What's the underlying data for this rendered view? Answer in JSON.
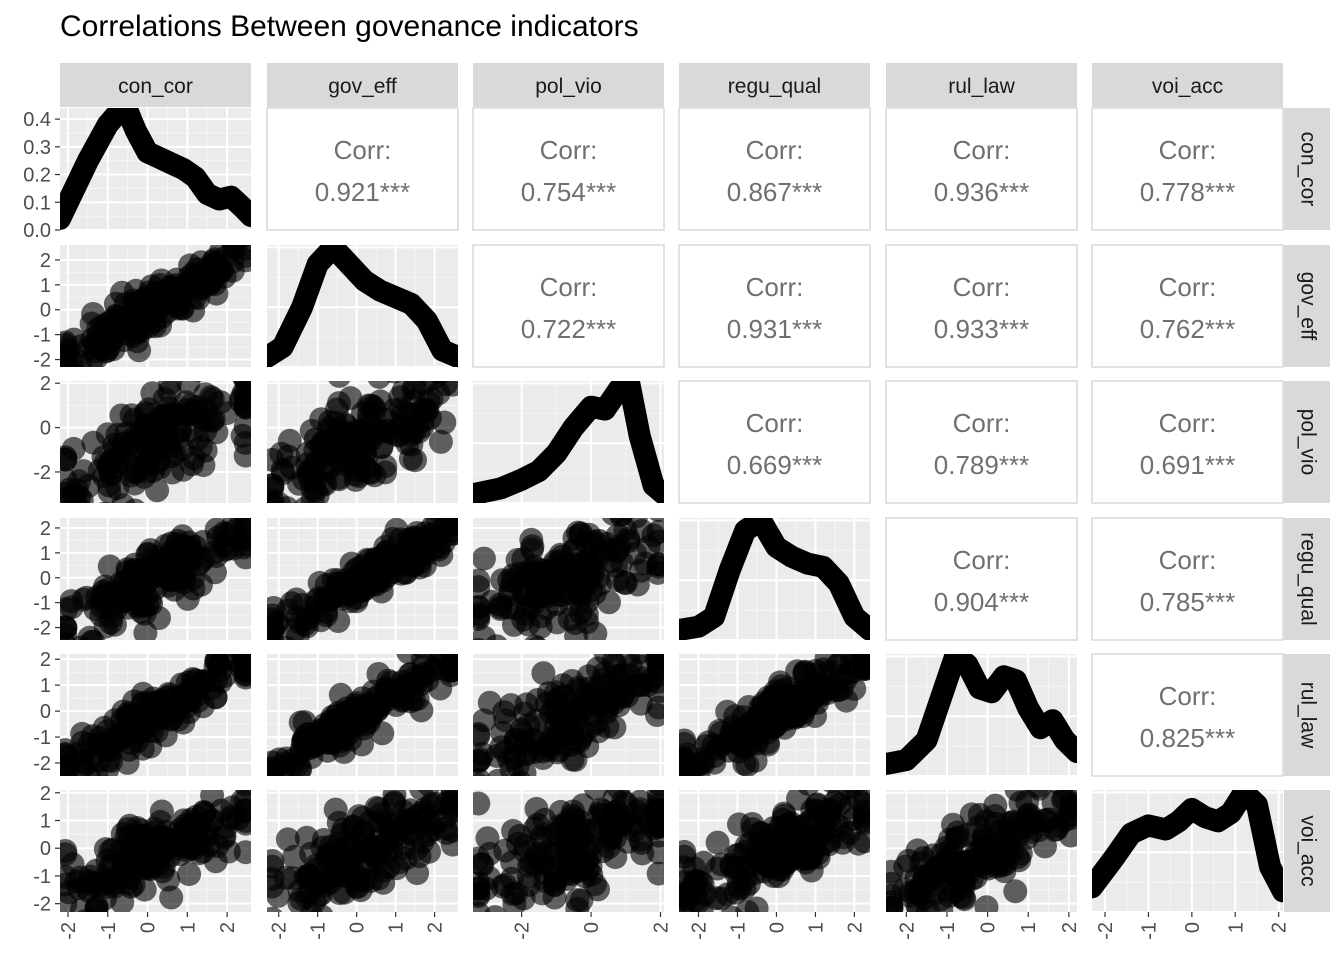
{
  "title": "Correlations Between govenance indicators",
  "chart_data": {
    "type": "scatter",
    "subtype": "pairs-matrix",
    "title": "Correlations Between govenance indicators",
    "variables": [
      "con_cor",
      "gov_eff",
      "pol_vio",
      "regu_qual",
      "rul_law",
      "voi_acc"
    ],
    "axis_ranges": {
      "con_cor": [
        -2.2,
        2.6
      ],
      "gov_eff": [
        -2.3,
        2.6
      ],
      "pol_vio": [
        -3.4,
        2.1
      ],
      "regu_qual": [
        -2.5,
        2.4
      ],
      "rul_law": [
        -2.5,
        2.2
      ],
      "voi_acc": [
        -2.3,
        2.1
      ]
    },
    "x_ticks": {
      "con_cor": [
        "-2",
        "-1",
        "0",
        "1",
        "2"
      ],
      "gov_eff": [
        "-2",
        "-1",
        "0",
        "1",
        "2"
      ],
      "pol_vio": [
        "-2",
        "0",
        "2"
      ],
      "regu_qual": [
        "-2",
        "-1",
        "0",
        "1",
        "2"
      ],
      "rul_law": [
        "-2",
        "-1",
        "0",
        "1",
        "2"
      ],
      "voi_acc": [
        "-2",
        "-1",
        "0",
        "1",
        "2"
      ]
    },
    "y_ticks": {
      "con_cor_density": [
        "0.0",
        "0.1",
        "0.2",
        "0.3",
        "0.4"
      ],
      "gov_eff": [
        "-2",
        "-1",
        "0",
        "1",
        "2"
      ],
      "pol_vio": [
        "-2",
        "0",
        "2"
      ],
      "regu_qual": [
        "-2",
        "-1",
        "0",
        "1",
        "2"
      ],
      "rul_law": [
        "-2",
        "-1",
        "0",
        "1",
        "2"
      ],
      "voi_acc": [
        "-2",
        "-1",
        "0",
        "1",
        "2"
      ]
    },
    "density_ylim_con_cor": [
      0,
      0.44
    ],
    "corr_label": "Corr:",
    "correlations": [
      {
        "row": "con_cor",
        "col": "gov_eff",
        "value": "0.921***"
      },
      {
        "row": "con_cor",
        "col": "pol_vio",
        "value": "0.754***"
      },
      {
        "row": "con_cor",
        "col": "regu_qual",
        "value": "0.867***"
      },
      {
        "row": "con_cor",
        "col": "rul_law",
        "value": "0.936***"
      },
      {
        "row": "con_cor",
        "col": "voi_acc",
        "value": "0.778***"
      },
      {
        "row": "gov_eff",
        "col": "pol_vio",
        "value": "0.722***"
      },
      {
        "row": "gov_eff",
        "col": "regu_qual",
        "value": "0.931***"
      },
      {
        "row": "gov_eff",
        "col": "rul_law",
        "value": "0.933***"
      },
      {
        "row": "gov_eff",
        "col": "voi_acc",
        "value": "0.762***"
      },
      {
        "row": "pol_vio",
        "col": "regu_qual",
        "value": "0.669***"
      },
      {
        "row": "pol_vio",
        "col": "rul_law",
        "value": "0.789***"
      },
      {
        "row": "pol_vio",
        "col": "voi_acc",
        "value": "0.691***"
      },
      {
        "row": "regu_qual",
        "col": "rul_law",
        "value": "0.904***"
      },
      {
        "row": "regu_qual",
        "col": "voi_acc",
        "value": "0.785***"
      },
      {
        "row": "rul_law",
        "col": "voi_acc",
        "value": "0.825***"
      }
    ],
    "densities": {
      "con_cor": {
        "x": [
          -2.2,
          -1.5,
          -1.0,
          -0.7,
          -0.5,
          -0.3,
          0.0,
          0.3,
          0.6,
          0.9,
          1.2,
          1.5,
          1.8,
          2.1,
          2.4,
          2.6
        ],
        "y": [
          0.04,
          0.25,
          0.38,
          0.43,
          0.43,
          0.36,
          0.28,
          0.26,
          0.24,
          0.22,
          0.19,
          0.13,
          0.11,
          0.12,
          0.08,
          0.05
        ]
      },
      "gov_eff": {
        "x": [
          -2.3,
          -1.9,
          -1.4,
          -1.0,
          -0.6,
          -0.2,
          0.2,
          0.6,
          1.0,
          1.4,
          1.8,
          2.2,
          2.6
        ],
        "y": [
          0.06,
          0.12,
          0.36,
          0.62,
          0.72,
          0.62,
          0.52,
          0.46,
          0.42,
          0.38,
          0.28,
          0.1,
          0.06
        ]
      },
      "pol_vio": {
        "x": [
          -3.4,
          -2.6,
          -2.0,
          -1.5,
          -1.0,
          -0.5,
          0.0,
          0.4,
          0.8,
          1.1,
          1.4,
          1.8,
          2.1
        ],
        "y": [
          0.06,
          0.1,
          0.16,
          0.22,
          0.34,
          0.52,
          0.66,
          0.64,
          0.78,
          0.82,
          0.46,
          0.12,
          0.06
        ]
      },
      "regu_qual": {
        "x": [
          -2.5,
          -2.0,
          -1.6,
          -1.2,
          -0.8,
          -0.4,
          0.0,
          0.4,
          0.8,
          1.2,
          1.6,
          2.0,
          2.4
        ],
        "y": [
          0.06,
          0.08,
          0.14,
          0.42,
          0.66,
          0.72,
          0.56,
          0.5,
          0.46,
          0.44,
          0.34,
          0.14,
          0.06
        ]
      },
      "rul_law": {
        "x": [
          -2.5,
          -2.0,
          -1.5,
          -1.1,
          -0.8,
          -0.5,
          -0.2,
          0.1,
          0.4,
          0.7,
          1.0,
          1.3,
          1.6,
          1.9,
          2.2
        ],
        "y": [
          0.06,
          0.08,
          0.18,
          0.42,
          0.6,
          0.56,
          0.44,
          0.42,
          0.5,
          0.48,
          0.34,
          0.24,
          0.28,
          0.18,
          0.12
        ]
      },
      "voi_acc": {
        "x": [
          -2.3,
          -1.8,
          -1.4,
          -1.0,
          -0.6,
          -0.3,
          0.0,
          0.3,
          0.6,
          0.9,
          1.2,
          1.5,
          1.8,
          2.1
        ],
        "y": [
          0.12,
          0.26,
          0.38,
          0.42,
          0.4,
          0.44,
          0.5,
          0.46,
          0.44,
          0.48,
          0.58,
          0.52,
          0.22,
          0.1
        ]
      }
    },
    "grid": true,
    "background": "#ebebeb",
    "strip_fill": "#d9d9d9",
    "mark_color": "#000000"
  }
}
